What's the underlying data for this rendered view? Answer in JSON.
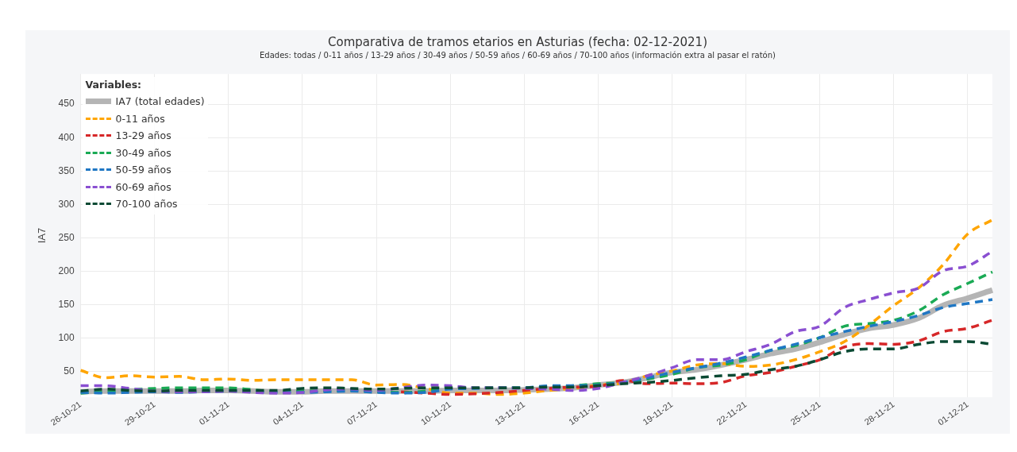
{
  "chart_data": {
    "type": "line",
    "title": "Comparativa de tramos etarios en Asturias (fecha: 02-12-2021)",
    "subtitle": "Edades: todas  / 0-11 años / 13-29 años / 30-49 años / 50-59 años / 60-69 años / 70-100 años (información extra al pasar el ratón)",
    "ylabel": "IA7",
    "legend_title": "Variables:",
    "legend": "top left",
    "grid": true,
    "marker": "none",
    "categories": [
      "26-10-21",
      null,
      null,
      "29-10-21",
      null,
      null,
      "01-11-21",
      null,
      null,
      "04-11-21",
      null,
      null,
      "07-11-21",
      null,
      null,
      "10-11-21",
      null,
      null,
      "13-11-21",
      null,
      null,
      "16-11-21",
      null,
      null,
      "19-11-21",
      null,
      null,
      "22-11-21",
      null,
      null,
      "25-11-21",
      null,
      null,
      "28-11-21",
      null,
      null,
      "01-12-21",
      null
    ],
    "ylim": [
      12,
      495
    ],
    "yticks": [
      50,
      100,
      150,
      200,
      250,
      300,
      350,
      400,
      450
    ],
    "series": [
      {
        "name": "IA7 (total edades)",
        "color": "#b5b5b5",
        "line_style": "solid",
        "values": [
          20,
          21,
          21,
          21,
          21,
          22,
          22,
          21,
          20,
          20,
          21,
          21,
          21,
          21,
          21,
          22,
          22,
          22,
          23,
          24,
          26,
          30,
          34,
          41,
          49,
          53,
          60,
          68,
          77,
          84,
          94,
          106,
          115,
          120,
          130,
          149,
          160,
          172
        ]
      },
      {
        "name": "0-11 años",
        "color": "#ffa500",
        "line_style": "dashed",
        "values": [
          52,
          41,
          44,
          42,
          43,
          38,
          39,
          37,
          38,
          38,
          38,
          38,
          30,
          31,
          25,
          18,
          18,
          16,
          18,
          22,
          25,
          30,
          33,
          44,
          51,
          60,
          62,
          58,
          60,
          68,
          80,
          95,
          120,
          149,
          175,
          210,
          256,
          277
        ]
      },
      {
        "name": "13-29 años",
        "color": "#d62728",
        "line_style": "dashed",
        "values": [
          null,
          null,
          null,
          null,
          null,
          null,
          null,
          null,
          null,
          null,
          null,
          null,
          null,
          20,
          18,
          16,
          17,
          19,
          22,
          25,
          27,
          28,
          37,
          32,
          33,
          32,
          34,
          44,
          49,
          58,
          68,
          87,
          92,
          91,
          96,
          110,
          115,
          127
        ]
      },
      {
        "name": "30-49 años",
        "color": "#1aaa55",
        "line_style": "dashed",
        "values": [
          18,
          20,
          23,
          25,
          26,
          26,
          26,
          23,
          20,
          21,
          21,
          22,
          20,
          19,
          21,
          26,
          26,
          26,
          26,
          27,
          29,
          32,
          34,
          39,
          46,
          56,
          60,
          68,
          82,
          89,
          101,
          118,
          122,
          127,
          141,
          165,
          182,
          199
        ]
      },
      {
        "name": "50-59 años",
        "color": "#1f77c4",
        "line_style": "dashed",
        "values": [
          19,
          18,
          19,
          20,
          19,
          20,
          21,
          20,
          19,
          19,
          20,
          21,
          19,
          18,
          19,
          24,
          25,
          26,
          26,
          29,
          29,
          30,
          34,
          41,
          49,
          56,
          63,
          72,
          82,
          91,
          101,
          110,
          118,
          125,
          134,
          146,
          152,
          158
        ]
      },
      {
        "name": "60-69 años",
        "color": "#8a4fd1",
        "line_style": "dashed",
        "values": [
          29,
          29,
          25,
          21,
          20,
          20,
          21,
          19,
          18,
          19,
          23,
          24,
          22,
          26,
          30,
          29,
          26,
          26,
          25,
          24,
          22,
          25,
          34,
          44,
          56,
          68,
          68,
          80,
          91,
          110,
          118,
          146,
          158,
          168,
          175,
          201,
          208,
          230
        ]
      },
      {
        "name": "70-100 años",
        "color": "#0b4a34",
        "line_style": "dashed",
        "values": [
          21,
          24,
          22,
          21,
          22,
          22,
          22,
          22,
          22,
          25,
          26,
          25,
          24,
          25,
          26,
          26,
          26,
          26,
          26,
          27,
          27,
          29,
          32,
          34,
          37,
          41,
          44,
          46,
          53,
          58,
          68,
          80,
          84,
          84,
          91,
          95,
          95,
          91
        ]
      }
    ]
  }
}
